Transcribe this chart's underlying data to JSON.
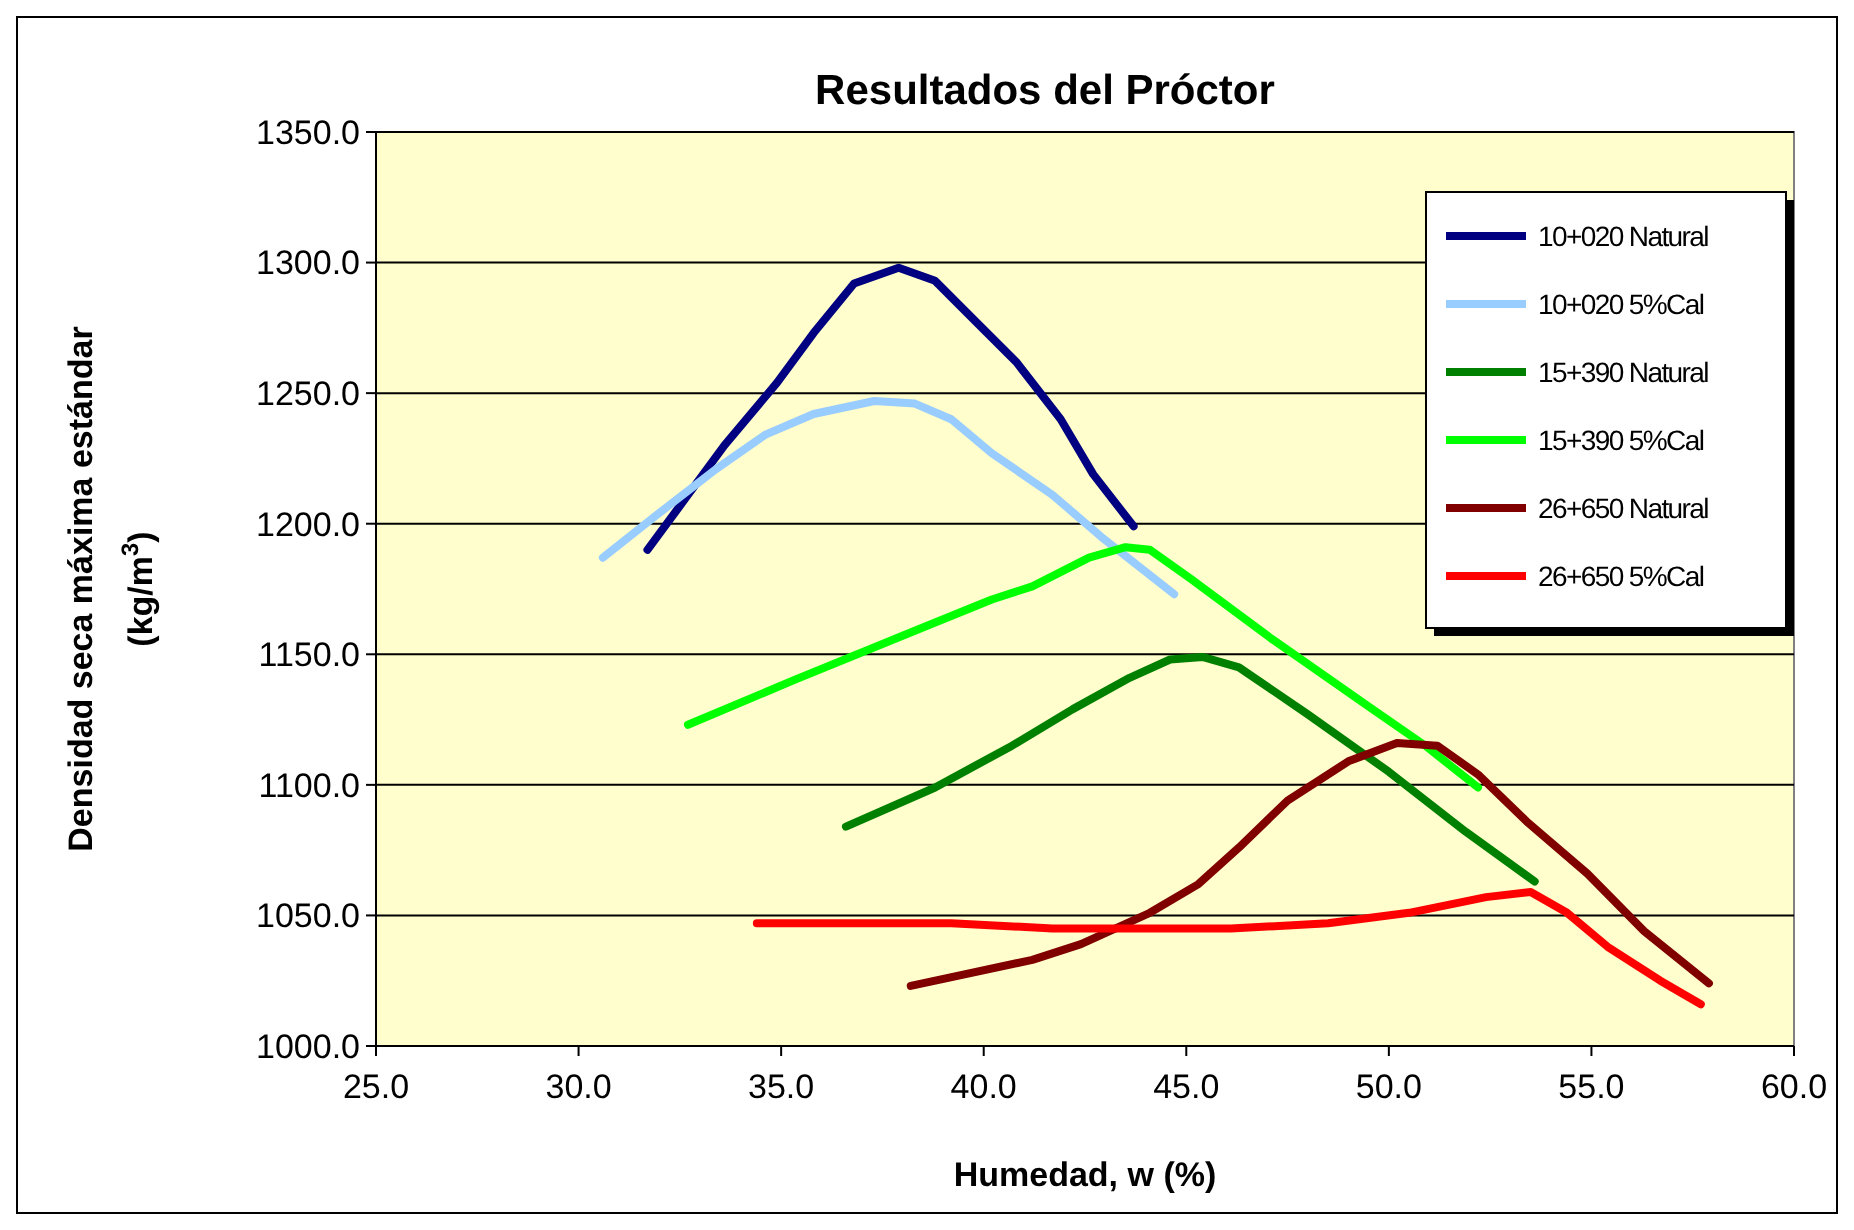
{
  "chart_data": {
    "type": "line",
    "title": "Resultados del Próctor",
    "xlabel": "Humedad, w (%)",
    "ylabel": "Densidad seca máxima estándar\n(kg/m$^{3}$)",
    "xlim": [
      25,
      60
    ],
    "xticks": [
      {
        "value": 25,
        "label": "25.0"
      },
      {
        "value": 30,
        "label": "30.0"
      },
      {
        "value": 35,
        "label": "35.0"
      },
      {
        "value": 40,
        "label": "40.0"
      },
      {
        "value": 45,
        "label": "45.0"
      },
      {
        "value": 50,
        "label": "50.0"
      },
      {
        "value": 55,
        "label": "55.0"
      },
      {
        "value": 60,
        "label": "60.0"
      }
    ],
    "ylim": [
      1000,
      1350
    ],
    "yticks": [
      {
        "value": 1000,
        "label": "1000.0"
      },
      {
        "value": 1050,
        "label": "1050.0"
      },
      {
        "value": 1100,
        "label": "1100.0"
      },
      {
        "value": 1150,
        "label": "1150.0"
      },
      {
        "value": 1200,
        "label": "1200.0"
      },
      {
        "value": 1250,
        "label": "1250.0"
      },
      {
        "value": 1300,
        "label": "1300.0"
      },
      {
        "value": 1350,
        "label": "1350.0"
      }
    ],
    "grid": "y",
    "legend": "top right",
    "marker": "none",
    "line_style": "solid",
    "series": [
      {
        "name": "10+020 Natural",
        "color": "#000080",
        "x": [
          31.7,
          32.7,
          33.6,
          34.9,
          35.8,
          36.8,
          37.9,
          38.8,
          39.7,
          40.8,
          41.9,
          42.7,
          43.7
        ],
        "values": [
          1190,
          1211,
          1230,
          1254,
          1273,
          1292,
          1298,
          1293,
          1279,
          1262,
          1240,
          1219,
          1199
        ]
      },
      {
        "name": "10+020 5%Cal",
        "color": "#99ccff",
        "x": [
          30.6,
          31.9,
          33.4,
          34.6,
          35.8,
          37.3,
          38.3,
          39.2,
          40.2,
          41.7,
          42.9,
          44.7
        ],
        "values": [
          1187,
          1203,
          1221,
          1234,
          1242,
          1247,
          1246,
          1240,
          1227,
          1211,
          1195,
          1173
        ]
      },
      {
        "name": "15+390 Natural",
        "color": "#008000",
        "x": [
          36.6,
          38.8,
          40.7,
          42.2,
          43.6,
          44.6,
          45.4,
          46.3,
          48.0,
          50.0,
          51.9,
          53.6
        ],
        "values": [
          1084,
          1099,
          1115,
          1129,
          1141,
          1148,
          1149,
          1145,
          1127,
          1105,
          1082,
          1063
        ]
      },
      {
        "name": "15+390 5%Cal",
        "color": "#00ff00",
        "x": [
          32.7,
          35.3,
          38.3,
          40.2,
          41.2,
          42.6,
          43.5,
          44.1,
          45.1,
          47.1,
          49.5,
          50.9,
          52.2
        ],
        "values": [
          1123,
          1140,
          1159,
          1171,
          1176,
          1187,
          1191,
          1190,
          1179,
          1156,
          1130,
          1115,
          1099
        ]
      },
      {
        "name": "26+650 Natural",
        "color": "#800000",
        "x": [
          38.2,
          41.2,
          42.4,
          44.1,
          45.3,
          46.3,
          47.5,
          49.0,
          50.2,
          51.2,
          52.2,
          53.4,
          54.9,
          56.3,
          57.9
        ],
        "values": [
          1023,
          1033,
          1039,
          1051,
          1062,
          1076,
          1094,
          1109,
          1116,
          1115,
          1104,
          1086,
          1066,
          1044,
          1024
        ]
      },
      {
        "name": "26+650 5%Cal",
        "color": "#ff0000",
        "x": [
          34.4,
          39.2,
          41.7,
          43.2,
          46.1,
          48.5,
          50.5,
          52.4,
          53.5,
          54.4,
          55.4,
          56.7,
          57.7
        ],
        "values": [
          1047,
          1047,
          1045,
          1045,
          1045,
          1047,
          1051,
          1057,
          1059,
          1051,
          1038,
          1025,
          1016
        ]
      }
    ]
  }
}
